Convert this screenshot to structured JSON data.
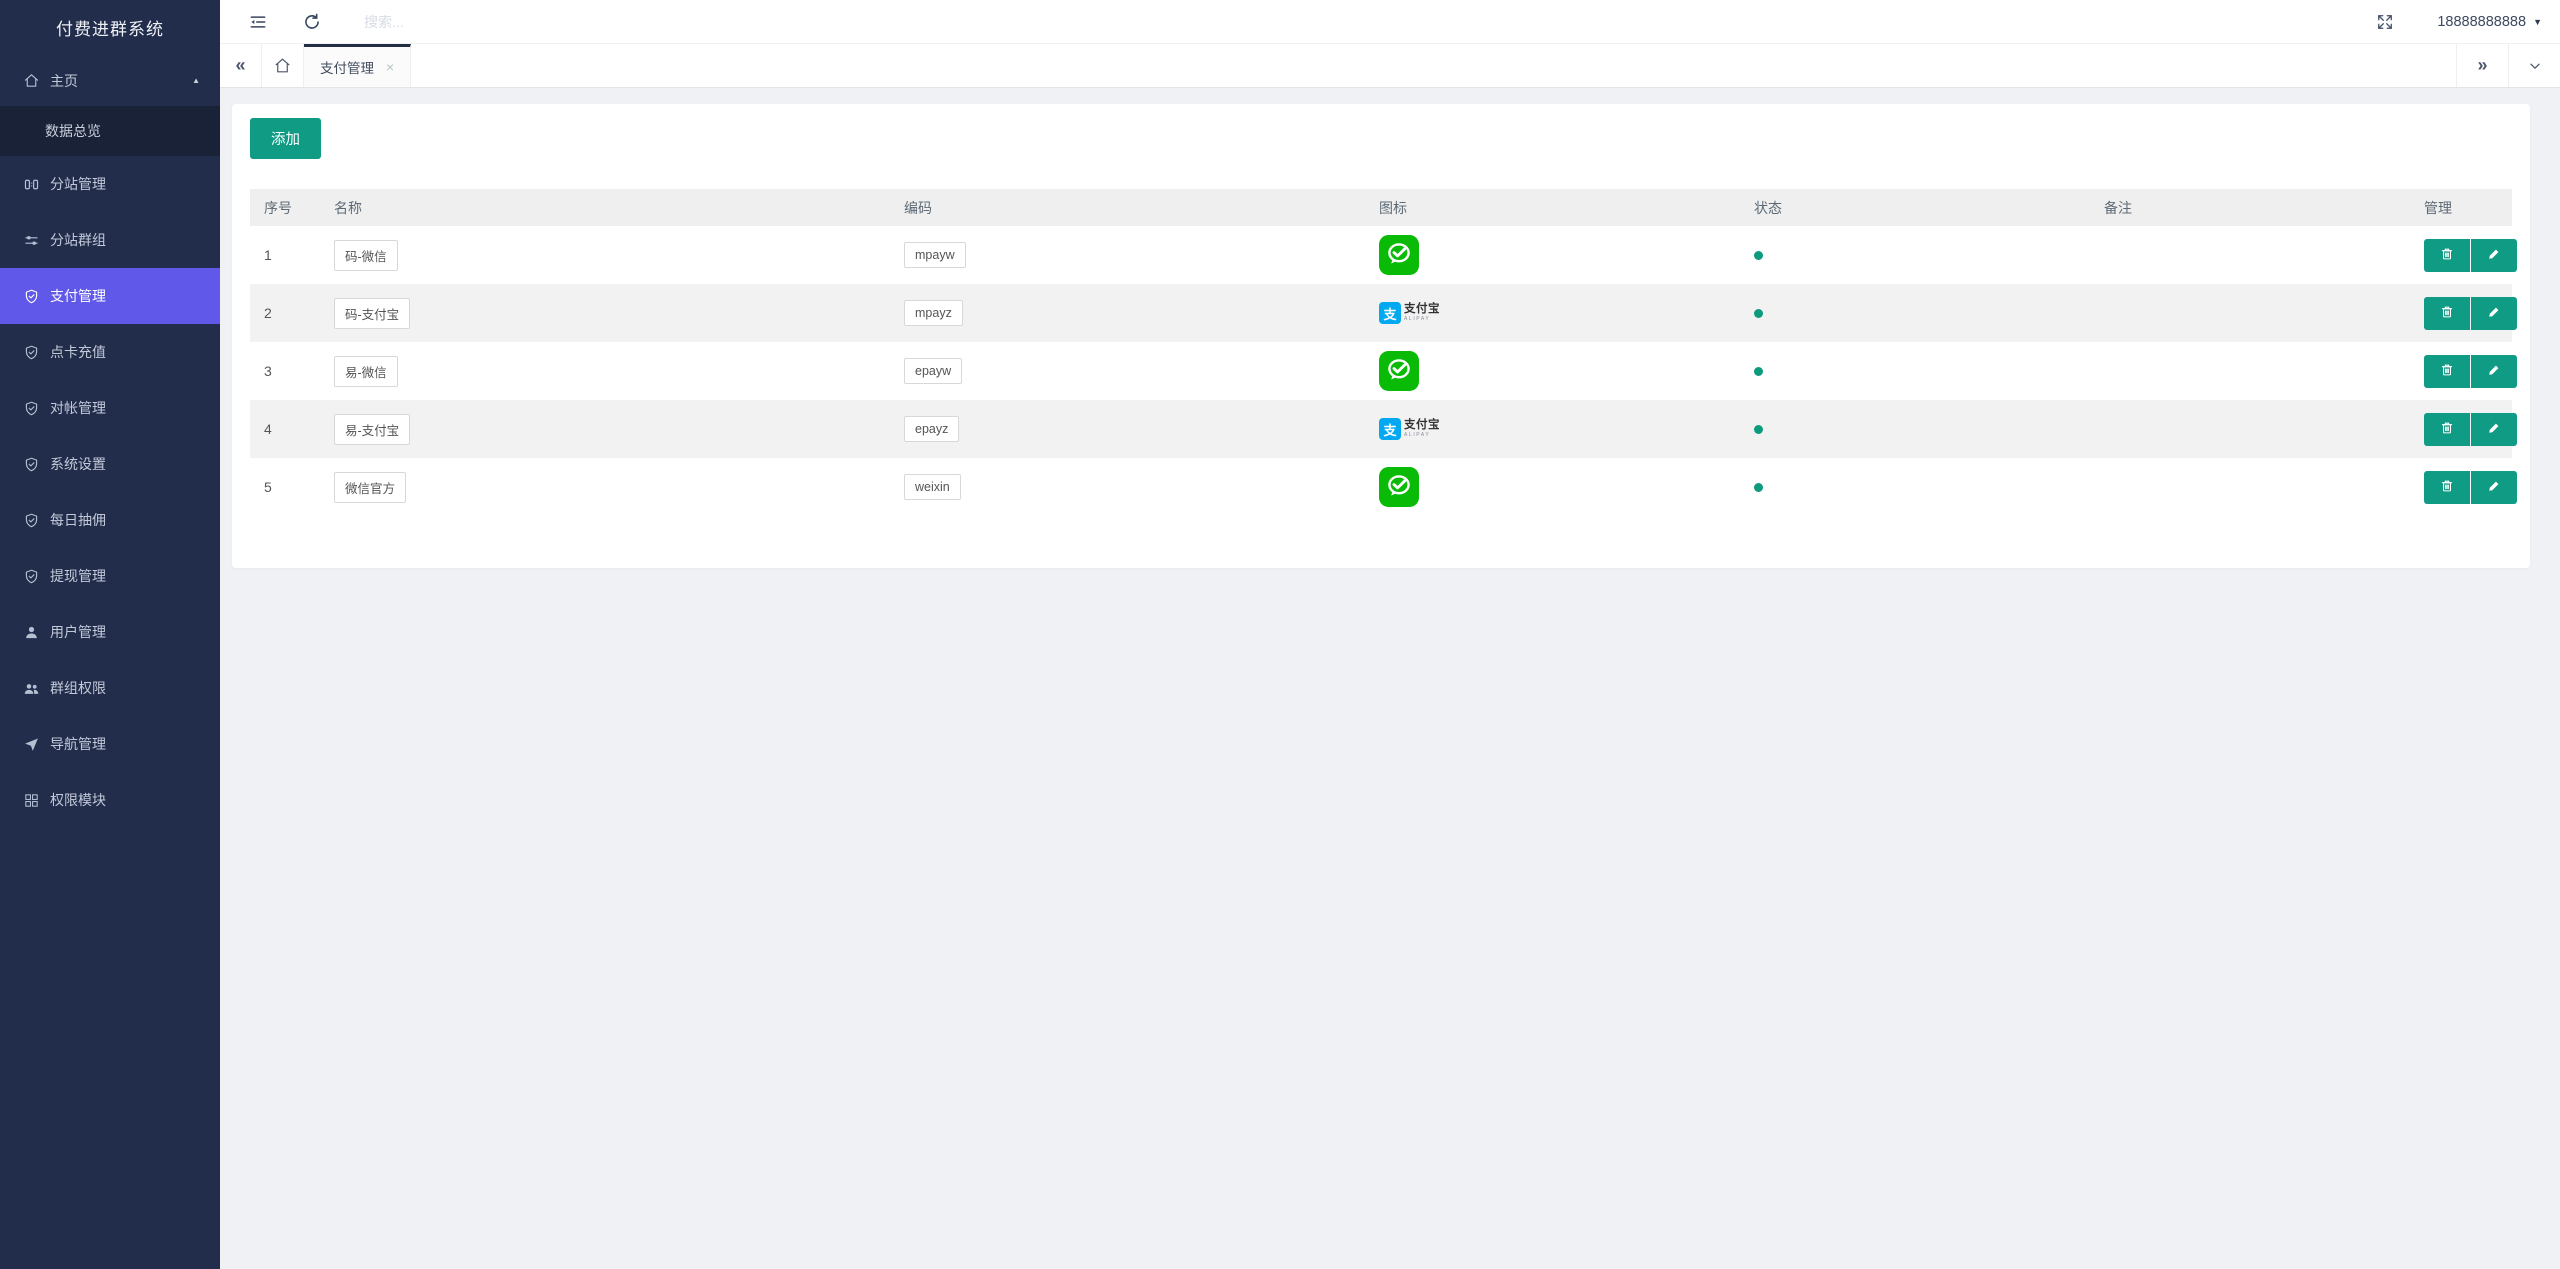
{
  "app": {
    "title": "付费进群系统"
  },
  "topbar": {
    "search_placeholder": "搜索...",
    "user_phone": "18888888888"
  },
  "tabbar": {
    "tabs": [
      {
        "label": "支付管理",
        "active": true,
        "close_glyph": "×"
      }
    ]
  },
  "sidebar": {
    "items": [
      {
        "key": "home",
        "label": "主页",
        "icon": "home-icon",
        "type": "group",
        "expanded": true
      },
      {
        "key": "data-overview",
        "label": "数据总览",
        "icon": "",
        "type": "sub"
      },
      {
        "key": "site-manage",
        "label": "分站管理",
        "icon": "grid-icon",
        "type": "item"
      },
      {
        "key": "site-groups",
        "label": "分站群组",
        "icon": "sliders-icon",
        "type": "item"
      },
      {
        "key": "payment-manage",
        "label": "支付管理",
        "icon": "shield-check-icon",
        "type": "item",
        "active": true
      },
      {
        "key": "card-recharge",
        "label": "点卡充值",
        "icon": "shield-check-icon",
        "type": "item"
      },
      {
        "key": "reconciliation",
        "label": "对帐管理",
        "icon": "shield-check-icon",
        "type": "item"
      },
      {
        "key": "system-settings",
        "label": "系统设置",
        "icon": "shield-check-icon",
        "type": "item"
      },
      {
        "key": "daily-commission",
        "label": "每日抽佣",
        "icon": "shield-check-icon",
        "type": "item"
      },
      {
        "key": "withdraw-manage",
        "label": "提现管理",
        "icon": "shield-check-icon",
        "type": "item"
      },
      {
        "key": "user-manage",
        "label": "用户管理",
        "icon": "user-icon",
        "type": "item"
      },
      {
        "key": "group-permissions",
        "label": "群组权限",
        "icon": "users-icon",
        "type": "item"
      },
      {
        "key": "nav-manage",
        "label": "导航管理",
        "icon": "send-icon",
        "type": "item"
      },
      {
        "key": "permission-modules",
        "label": "权限模块",
        "icon": "modules-icon",
        "type": "item"
      }
    ]
  },
  "main": {
    "add_button": "添加",
    "table": {
      "columns": [
        "序号",
        "名称",
        "编码",
        "图标",
        "状态",
        "备注",
        "管理"
      ],
      "rows": [
        {
          "index": "1",
          "name": "码-微信",
          "code": "mpayw",
          "icon": "wechat-pay-icon",
          "status": "active",
          "remark": ""
        },
        {
          "index": "2",
          "name": "码-支付宝",
          "code": "mpayz",
          "icon": "alipay-icon",
          "status": "active",
          "remark": ""
        },
        {
          "index": "3",
          "name": "易-微信",
          "code": "epayw",
          "icon": "wechat-pay-icon",
          "status": "active",
          "remark": ""
        },
        {
          "index": "4",
          "name": "易-支付宝",
          "code": "epayz",
          "icon": "alipay-icon",
          "status": "active",
          "remark": ""
        },
        {
          "index": "5",
          "name": "微信官方",
          "code": "weixin",
          "icon": "wechat-pay-icon",
          "status": "active",
          "remark": ""
        }
      ]
    }
  },
  "brands": {
    "alipay": {
      "symbol": "支",
      "name": "支付宝",
      "latin": "ALIPAY"
    }
  },
  "colors": {
    "accent_teal": "#0F9B84",
    "sidebar_bg": "#212D4B",
    "sidebar_submenu_bg": "#192236",
    "sidebar_active": "#6058E8",
    "wechat_green": "#09BB07",
    "alipay_blue": "#02A9F1",
    "status_dot": "#0C9B7D",
    "tab_top_border": "#242E45"
  }
}
